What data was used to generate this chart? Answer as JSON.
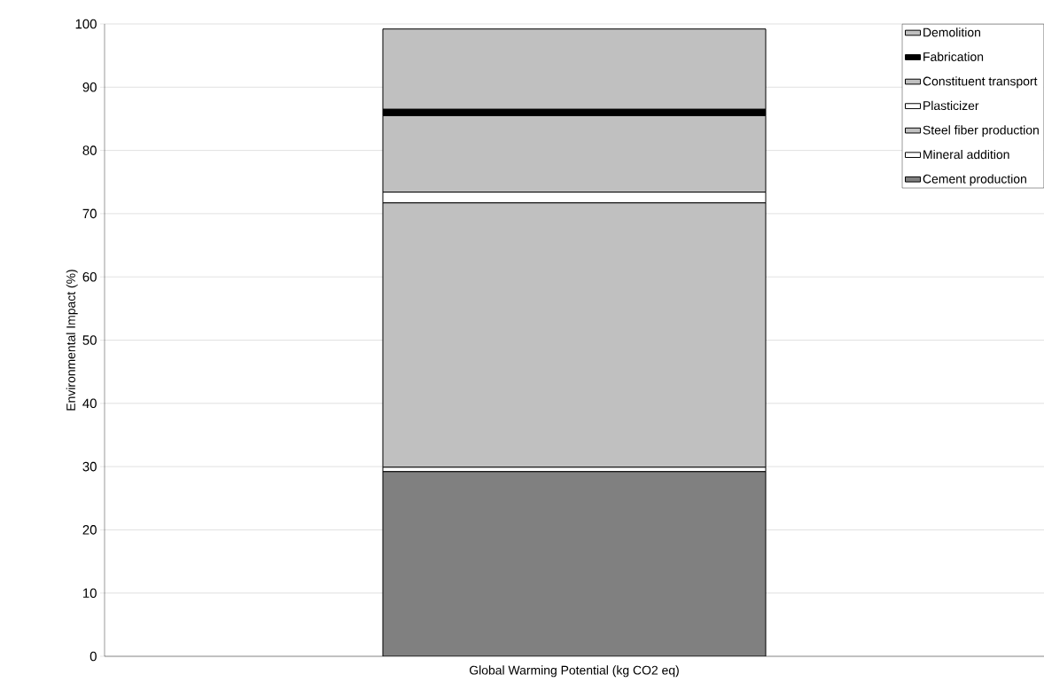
{
  "chart_data": {
    "type": "bar",
    "stacked": true,
    "xlabel": "Global Warming Potential (kg CO2 eq)",
    "ylabel": "Environmental Impact (%)",
    "categories": [
      null
    ],
    "series": [
      {
        "name": "Cement production",
        "color": "#808080",
        "values": [
          29.2
        ]
      },
      {
        "name": "Mineral addition",
        "color": "#ffffff",
        "values": [
          0.7
        ]
      },
      {
        "name": "Steel fiber production",
        "color": "#c0c0c0",
        "values": [
          41.8
        ]
      },
      {
        "name": "Plasticizer",
        "color": "#ffffff",
        "values": [
          1.7
        ]
      },
      {
        "name": "Constituent transport",
        "color": "#c0c0c0",
        "values": [
          12.1
        ]
      },
      {
        "name": "Fabrication",
        "color": "#000000",
        "values": [
          1.0
        ]
      },
      {
        "name": "Demolition",
        "color": "#c0c0c0",
        "values": [
          12.7
        ]
      }
    ],
    "ylim": [
      0,
      100
    ],
    "yticks": [
      0,
      10,
      20,
      30,
      40,
      50,
      60,
      70,
      80,
      90,
      100
    ],
    "grid": "y",
    "legend": "top right"
  }
}
